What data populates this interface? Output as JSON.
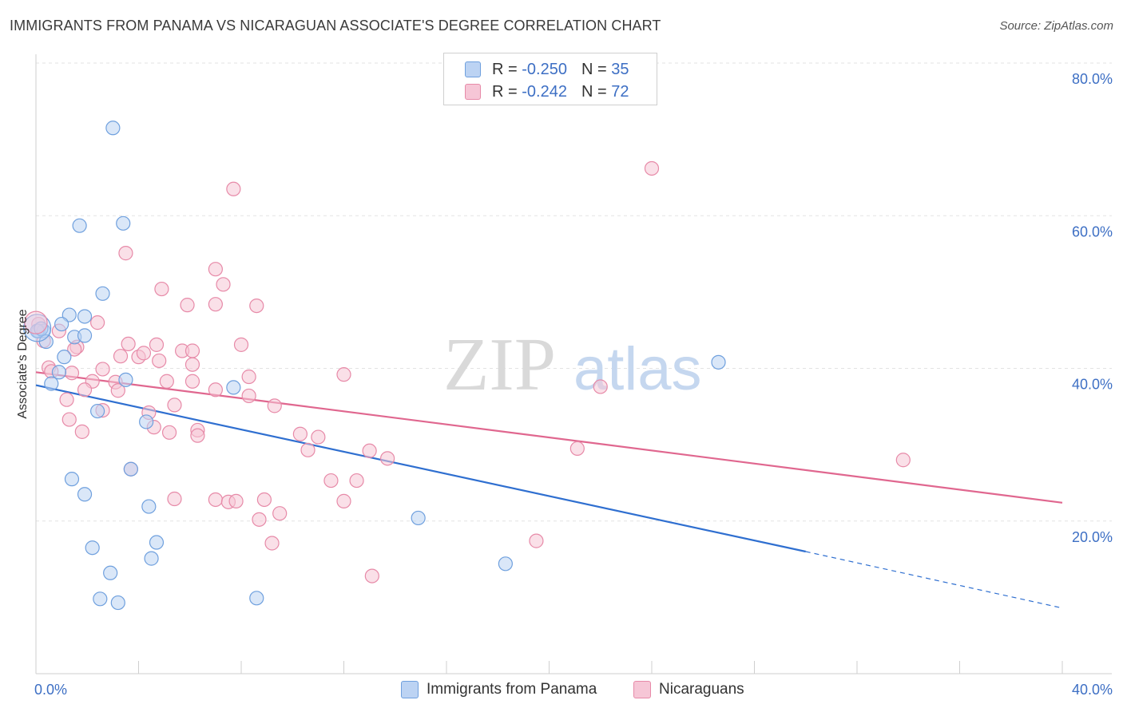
{
  "title": "IMMIGRANTS FROM PANAMA VS NICARAGUAN ASSOCIATE'S DEGREE CORRELATION CHART",
  "source": "Source: ZipAtlas.com",
  "watermark": {
    "part1": "ZIP",
    "part2": "atlas"
  },
  "legend": {
    "r_label": "R =",
    "n_label": "N =",
    "rows": [
      {
        "r": "-0.250",
        "n": "35"
      },
      {
        "r": "-0.242",
        "n": "72"
      }
    ]
  },
  "chart_data": {
    "type": "scatter",
    "xlabel": "",
    "ylabel": "Associate's Degree",
    "xlim": [
      0,
      40
    ],
    "ylim": [
      0,
      80
    ],
    "x_tick_labels": [
      "0.0%",
      "40.0%"
    ],
    "y_tick_labels": [
      "20.0%",
      "40.0%",
      "60.0%",
      "80.0%"
    ],
    "y_tick_values": [
      20,
      40,
      60,
      80
    ],
    "series": [
      {
        "name": "Immigrants from Panama",
        "color": "#6fa0de",
        "fill": "#bcd3f3",
        "r": -0.25,
        "n": 35,
        "trend": {
          "x0": 0,
          "y0": 37.8,
          "x1": 30,
          "y1": 16.0,
          "dash_to_x": 40,
          "dash_to_y": 8.6,
          "color": "#2f6fd0"
        },
        "points": [
          [
            3.0,
            71.5
          ],
          [
            1.7,
            58.7
          ],
          [
            3.4,
            59.0
          ],
          [
            2.6,
            49.8
          ],
          [
            0.1,
            44.9
          ],
          [
            0.3,
            44.9
          ],
          [
            1.3,
            47.0
          ],
          [
            1.9,
            46.8
          ],
          [
            1.0,
            45.8
          ],
          [
            1.5,
            44.1
          ],
          [
            1.9,
            44.3
          ],
          [
            0.4,
            43.5
          ],
          [
            1.1,
            41.5
          ],
          [
            0.9,
            39.5
          ],
          [
            0.6,
            38.0
          ],
          [
            3.5,
            38.5
          ],
          [
            7.7,
            37.5
          ],
          [
            2.4,
            34.4
          ],
          [
            4.3,
            33.0
          ],
          [
            1.4,
            25.5
          ],
          [
            3.7,
            26.8
          ],
          [
            1.9,
            23.5
          ],
          [
            4.4,
            21.9
          ],
          [
            14.9,
            20.4
          ],
          [
            4.7,
            17.2
          ],
          [
            2.2,
            16.5
          ],
          [
            4.5,
            15.1
          ],
          [
            2.9,
            13.2
          ],
          [
            18.3,
            14.4
          ],
          [
            2.5,
            9.8
          ],
          [
            3.2,
            9.3
          ],
          [
            8.6,
            9.9
          ],
          [
            26.6,
            40.8
          ],
          [
            0.05,
            44.9
          ],
          [
            0.2,
            45.2
          ]
        ]
      },
      {
        "name": "Nicaraguans",
        "color": "#e78aa8",
        "fill": "#f6c6d6",
        "r": -0.242,
        "n": 72,
        "trend": {
          "x0": 0,
          "y0": 39.5,
          "x1": 40,
          "y1": 22.4,
          "color": "#e0678f"
        },
        "points": [
          [
            0.1,
            45.8
          ],
          [
            0.3,
            43.6
          ],
          [
            0.9,
            44.9
          ],
          [
            1.6,
            42.8
          ],
          [
            2.4,
            46.0
          ],
          [
            3.5,
            55.1
          ],
          [
            7.7,
            63.5
          ],
          [
            24.0,
            66.2
          ],
          [
            7.0,
            53.0
          ],
          [
            7.3,
            51.0
          ],
          [
            4.9,
            50.4
          ],
          [
            5.9,
            48.3
          ],
          [
            7.0,
            48.4
          ],
          [
            8.6,
            48.2
          ],
          [
            3.6,
            43.2
          ],
          [
            4.0,
            41.5
          ],
          [
            4.7,
            43.1
          ],
          [
            4.2,
            42.0
          ],
          [
            5.7,
            42.3
          ],
          [
            6.1,
            42.3
          ],
          [
            8.0,
            43.1
          ],
          [
            6.1,
            40.5
          ],
          [
            2.6,
            39.9
          ],
          [
            1.4,
            39.4
          ],
          [
            5.1,
            38.3
          ],
          [
            6.1,
            38.3
          ],
          [
            8.3,
            38.9
          ],
          [
            12.0,
            39.2
          ],
          [
            3.1,
            38.2
          ],
          [
            2.2,
            38.3
          ],
          [
            1.9,
            37.2
          ],
          [
            3.2,
            37.1
          ],
          [
            7.0,
            37.2
          ],
          [
            1.2,
            35.9
          ],
          [
            8.3,
            36.4
          ],
          [
            5.4,
            35.2
          ],
          [
            9.3,
            35.1
          ],
          [
            2.6,
            34.5
          ],
          [
            4.4,
            34.2
          ],
          [
            1.3,
            33.3
          ],
          [
            4.6,
            32.3
          ],
          [
            6.3,
            31.9
          ],
          [
            1.8,
            31.7
          ],
          [
            5.2,
            31.6
          ],
          [
            10.3,
            31.4
          ],
          [
            11.0,
            31.0
          ],
          [
            6.3,
            31.2
          ],
          [
            10.6,
            29.3
          ],
          [
            13.0,
            29.2
          ],
          [
            21.1,
            29.5
          ],
          [
            13.7,
            28.2
          ],
          [
            33.8,
            28.0
          ],
          [
            11.5,
            25.3
          ],
          [
            12.5,
            25.3
          ],
          [
            3.7,
            26.8
          ],
          [
            5.4,
            22.9
          ],
          [
            7.0,
            22.8
          ],
          [
            7.5,
            22.5
          ],
          [
            7.8,
            22.6
          ],
          [
            8.9,
            22.8
          ],
          [
            12.0,
            22.6
          ],
          [
            9.5,
            21.0
          ],
          [
            8.7,
            20.2
          ],
          [
            9.2,
            17.1
          ],
          [
            19.5,
            17.4
          ],
          [
            13.1,
            12.8
          ],
          [
            22.0,
            37.6
          ],
          [
            0.5,
            40.1
          ],
          [
            0.6,
            39.6
          ],
          [
            3.3,
            41.6
          ],
          [
            4.8,
            41.0
          ],
          [
            1.5,
            42.5
          ]
        ]
      }
    ]
  }
}
